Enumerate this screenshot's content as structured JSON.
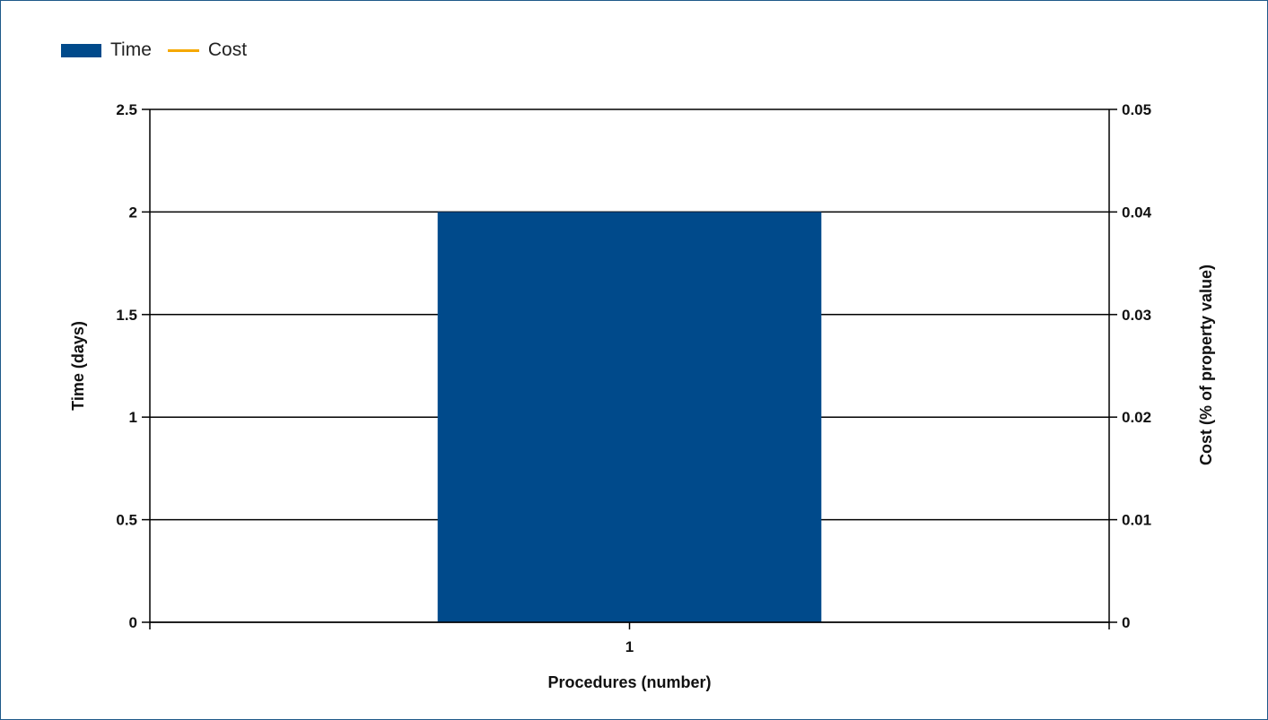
{
  "legend": {
    "items": [
      {
        "label": "Time",
        "kind": "bar",
        "color": "#004a8b"
      },
      {
        "label": "Cost",
        "kind": "line",
        "color": "#f5a800"
      }
    ]
  },
  "chart_data": {
    "type": "bar",
    "categories": [
      "1"
    ],
    "series": [
      {
        "name": "Time",
        "axis": "left",
        "values": [
          2
        ],
        "color": "#004a8b"
      },
      {
        "name": "Cost",
        "axis": "right",
        "type": "line",
        "values": [
          0
        ],
        "color": "#f5a800"
      }
    ],
    "xlabel": "Procedures (number)",
    "ylabel": "Time (days)",
    "y2label": "Cost (% of property value)",
    "ylim": [
      0,
      2.5
    ],
    "y2lim": [
      0,
      0.05
    ],
    "yticks": [
      "0",
      "0.5",
      "1",
      "1.5",
      "2",
      "2.5"
    ],
    "y2ticks": [
      "0",
      "0.01",
      "0.02",
      "0.03",
      "0.04",
      "0.05"
    ],
    "grid": true,
    "legend_position": "top-left",
    "colors": {
      "grid": "#000000",
      "bar": "#004a8b",
      "line": "#f5a800",
      "border": "#1f5a8a"
    }
  }
}
